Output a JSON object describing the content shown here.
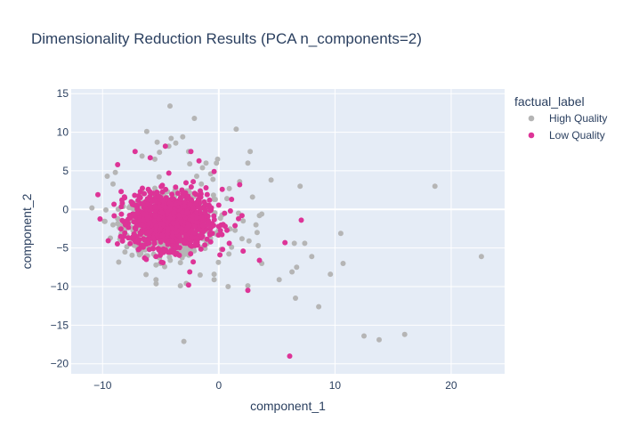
{
  "chart_data": {
    "type": "scatter",
    "title": "Dimensionality Reduction Results (PCA n_components=2)",
    "xlabel": "component_1",
    "ylabel": "component_2",
    "xlim": [
      -12.7,
      24.6
    ],
    "ylim": [
      -21.3,
      15.6
    ],
    "x_ticks": [
      -10,
      0,
      10,
      20
    ],
    "y_ticks": [
      -20,
      -15,
      -10,
      -5,
      0,
      5,
      10,
      15
    ],
    "grid": true,
    "legend": {
      "title": "factual_label",
      "position": "top-right"
    },
    "series": [
      {
        "name": "High Quality",
        "color": "#b5b5b5",
        "cluster": {
          "center": [
            -4.3,
            -2.0
          ],
          "spread": [
            1.9,
            1.9
          ],
          "count": 700
        },
        "points": [
          [
            -4.2,
            13.4
          ],
          [
            -2.1,
            11.8
          ],
          [
            1.5,
            10.4
          ],
          [
            -6.2,
            10.1
          ],
          [
            -4.1,
            9.2
          ],
          [
            -3.1,
            9.4
          ],
          [
            -5.3,
            8.7
          ],
          [
            -4.3,
            8.2
          ],
          [
            -3.7,
            8.6
          ],
          [
            -2.6,
            7.5
          ],
          [
            -5.1,
            7.4
          ],
          [
            -6.6,
            6.9
          ],
          [
            -0.1,
            6.5
          ],
          [
            -1.1,
            6.0
          ],
          [
            -0.2,
            6.0
          ],
          [
            2.7,
            7.5
          ],
          [
            2.5,
            6.0
          ],
          [
            -5.5,
            6.5
          ],
          [
            -2.5,
            5.9
          ],
          [
            -8.9,
            4.8
          ],
          [
            -9.6,
            4.3
          ],
          [
            -9.1,
            3.3
          ],
          [
            -1.4,
            5.4
          ],
          [
            -0.7,
            4.6
          ],
          [
            -1.9,
            4.3
          ],
          [
            4.5,
            3.8
          ],
          [
            1.8,
            3.6
          ],
          [
            7.0,
            3.0
          ],
          [
            -0.5,
            3.9
          ],
          [
            -1.5,
            3.3
          ],
          [
            2.9,
            1.6
          ],
          [
            -0.3,
            1.3
          ],
          [
            0.9,
            2.7
          ],
          [
            0.7,
            1.4
          ],
          [
            3.7,
            -0.6
          ],
          [
            3.5,
            -0.8
          ],
          [
            2.1,
            -1.5
          ],
          [
            3.2,
            -2.0
          ],
          [
            1.4,
            -2.7
          ],
          [
            2.0,
            -3.8
          ],
          [
            3.3,
            -3.0
          ],
          [
            2.6,
            -4.1
          ],
          [
            3.4,
            -4.7
          ],
          [
            1.1,
            -4.9
          ],
          [
            -8.3,
            -2.2
          ],
          [
            -9.1,
            -2.0
          ],
          [
            -8.7,
            -1.2
          ],
          [
            -7.0,
            -4.7
          ],
          [
            -6.7,
            -5.7
          ],
          [
            -5.6,
            -5.8
          ],
          [
            -5.1,
            -6.3
          ],
          [
            -5.4,
            -7.2
          ],
          [
            -3.3,
            -6.9
          ],
          [
            -5.4,
            -9.1
          ],
          [
            -3.3,
            -9.9
          ],
          [
            -2.8,
            -9.6
          ],
          [
            -1.6,
            -8.5
          ],
          [
            -0.4,
            -8.4
          ],
          [
            -0.4,
            -9.1
          ],
          [
            0.8,
            -10.0
          ],
          [
            2.5,
            -9.9
          ],
          [
            3.7,
            -7.0
          ],
          [
            5.2,
            -9.1
          ],
          [
            6.3,
            -8.1
          ],
          [
            6.7,
            -7.5
          ],
          [
            7.4,
            -4.4
          ],
          [
            8.0,
            -6.1
          ],
          [
            6.5,
            -4.4
          ],
          [
            10.5,
            -3.1
          ],
          [
            10.7,
            -7.0
          ],
          [
            9.6,
            -8.4
          ],
          [
            6.6,
            -11.5
          ],
          [
            8.6,
            -12.6
          ],
          [
            12.5,
            -16.4
          ],
          [
            13.8,
            -16.9
          ],
          [
            16.0,
            -16.2
          ],
          [
            18.6,
            3.0
          ],
          [
            22.6,
            -6.1
          ],
          [
            -3.0,
            -17.1
          ]
        ]
      },
      {
        "name": "Low Quality",
        "color": "#dd3497",
        "cluster": {
          "center": [
            -4.2,
            -1.5
          ],
          "spread": [
            1.6,
            1.7
          ],
          "count": 1100
        },
        "points": [
          [
            -8.7,
            5.8
          ],
          [
            -7.2,
            7.5
          ],
          [
            -5.9,
            6.7
          ],
          [
            -4.6,
            8.2
          ],
          [
            -4.3,
            4.7
          ],
          [
            -2.4,
            7.5
          ],
          [
            -1.7,
            6.3
          ],
          [
            -0.4,
            4.9
          ],
          [
            -2.2,
            3.6
          ],
          [
            -1.1,
            2.8
          ],
          [
            0.3,
            2.6
          ],
          [
            1.8,
            3.2
          ],
          [
            -0.8,
            1.2
          ],
          [
            1.1,
            1.3
          ],
          [
            1.0,
            -0.2
          ],
          [
            0.5,
            -0.5
          ],
          [
            1.7,
            -1.2
          ],
          [
            2.0,
            -0.8
          ],
          [
            1.4,
            -2.1
          ],
          [
            0.7,
            -2.7
          ],
          [
            -10.4,
            1.9
          ],
          [
            -8.4,
            2.3
          ],
          [
            -8.1,
            1.5
          ],
          [
            -8.3,
            0.8
          ],
          [
            -7.6,
            -1.1
          ],
          [
            -7.1,
            -3.5
          ],
          [
            -6.5,
            -4.9
          ],
          [
            -5.4,
            -6.1
          ],
          [
            -4.8,
            -6.9
          ],
          [
            -2.5,
            -8.1
          ],
          [
            -2.2,
            -6.8
          ],
          [
            -0.7,
            -4.2
          ],
          [
            0.1,
            -5.9
          ],
          [
            0.9,
            -4.4
          ],
          [
            2.1,
            -5.4
          ],
          [
            2.5,
            -10.5
          ],
          [
            -2.6,
            -9.8
          ],
          [
            3.5,
            -6.6
          ],
          [
            5.7,
            -4.3
          ],
          [
            7.1,
            -1.4
          ],
          [
            6.1,
            -19.0
          ]
        ]
      }
    ]
  }
}
